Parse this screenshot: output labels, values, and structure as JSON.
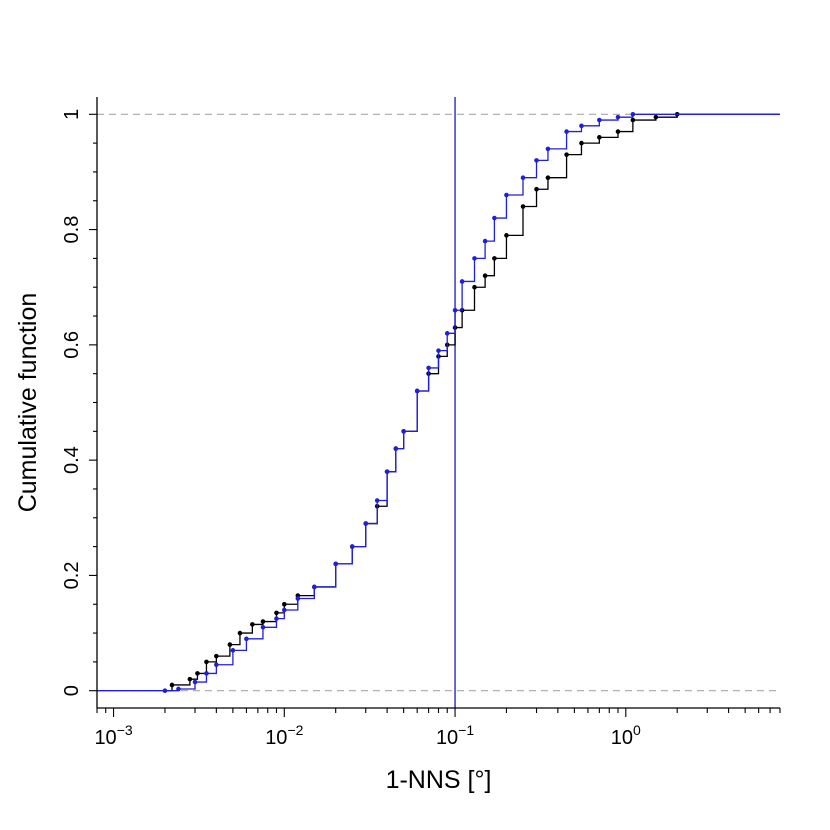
{
  "chart_data": {
    "type": "line",
    "title": "",
    "xlabel": "1-NNS [°]",
    "ylabel": "Cumulative function",
    "x_scale": "log",
    "xlim": [
      0.0008,
      8
    ],
    "ylim": [
      -0.03,
      1.03
    ],
    "x_ticks": [
      {
        "value": 0.001,
        "base": "10",
        "exp": "−3"
      },
      {
        "value": 0.01,
        "base": "10",
        "exp": "−2"
      },
      {
        "value": 0.1,
        "base": "10",
        "exp": "−1"
      },
      {
        "value": 1,
        "base": "10",
        "exp": "0"
      }
    ],
    "y_ticks": [
      {
        "value": 0,
        "label": "0"
      },
      {
        "value": 0.2,
        "label": "0.2"
      },
      {
        "value": 0.4,
        "label": "0.4"
      },
      {
        "value": 0.6,
        "label": "0.6"
      },
      {
        "value": 0.8,
        "label": "0.8"
      },
      {
        "value": 1,
        "label": "1"
      }
    ],
    "reference_lines": {
      "horizontal": [
        0,
        1
      ],
      "vertical": 0.1
    },
    "vertical_line_color": "#2828c8",
    "series": [
      {
        "color": "#000000",
        "points": [
          [
            0.002,
            0
          ],
          [
            0.0022,
            0.01
          ],
          [
            0.0028,
            0.02
          ],
          [
            0.0031,
            0.03
          ],
          [
            0.0035,
            0.05
          ],
          [
            0.004,
            0.06
          ],
          [
            0.0048,
            0.08
          ],
          [
            0.0055,
            0.1
          ],
          [
            0.0065,
            0.115
          ],
          [
            0.0075,
            0.12
          ],
          [
            0.009,
            0.135
          ],
          [
            0.01,
            0.15
          ],
          [
            0.012,
            0.165
          ],
          [
            0.015,
            0.18
          ],
          [
            0.02,
            0.22
          ],
          [
            0.025,
            0.25
          ],
          [
            0.03,
            0.29
          ],
          [
            0.035,
            0.32
          ],
          [
            0.04,
            0.38
          ],
          [
            0.045,
            0.42
          ],
          [
            0.05,
            0.45
          ],
          [
            0.06,
            0.52
          ],
          [
            0.07,
            0.55
          ],
          [
            0.08,
            0.58
          ],
          [
            0.09,
            0.6
          ],
          [
            0.1,
            0.63
          ],
          [
            0.11,
            0.66
          ],
          [
            0.13,
            0.7
          ],
          [
            0.15,
            0.72
          ],
          [
            0.17,
            0.75
          ],
          [
            0.2,
            0.79
          ],
          [
            0.25,
            0.84
          ],
          [
            0.3,
            0.87
          ],
          [
            0.35,
            0.89
          ],
          [
            0.45,
            0.93
          ],
          [
            0.55,
            0.95
          ],
          [
            0.7,
            0.96
          ],
          [
            0.9,
            0.97
          ],
          [
            1.1,
            0.99
          ],
          [
            1.5,
            0.995
          ],
          [
            2,
            1
          ],
          [
            3.5,
            1
          ],
          [
            8,
            1
          ]
        ]
      },
      {
        "color": "#2020d8",
        "points": [
          [
            0.0008,
            0
          ],
          [
            0.002,
            0
          ],
          [
            0.0024,
            0.003
          ],
          [
            0.003,
            0.015
          ],
          [
            0.0035,
            0.03
          ],
          [
            0.004,
            0.045
          ],
          [
            0.005,
            0.07
          ],
          [
            0.006,
            0.09
          ],
          [
            0.0075,
            0.11
          ],
          [
            0.009,
            0.125
          ],
          [
            0.01,
            0.14
          ],
          [
            0.012,
            0.16
          ],
          [
            0.015,
            0.18
          ],
          [
            0.02,
            0.22
          ],
          [
            0.025,
            0.25
          ],
          [
            0.03,
            0.29
          ],
          [
            0.035,
            0.33
          ],
          [
            0.04,
            0.38
          ],
          [
            0.045,
            0.42
          ],
          [
            0.05,
            0.45
          ],
          [
            0.06,
            0.52
          ],
          [
            0.07,
            0.56
          ],
          [
            0.08,
            0.59
          ],
          [
            0.09,
            0.62
          ],
          [
            0.1,
            0.66
          ],
          [
            0.11,
            0.71
          ],
          [
            0.13,
            0.75
          ],
          [
            0.15,
            0.78
          ],
          [
            0.17,
            0.82
          ],
          [
            0.2,
            0.86
          ],
          [
            0.25,
            0.89
          ],
          [
            0.3,
            0.92
          ],
          [
            0.35,
            0.94
          ],
          [
            0.45,
            0.97
          ],
          [
            0.55,
            0.98
          ],
          [
            0.7,
            0.99
          ],
          [
            0.9,
            0.995
          ],
          [
            1.1,
            1
          ],
          [
            2,
            1
          ],
          [
            8,
            1
          ]
        ]
      }
    ]
  }
}
